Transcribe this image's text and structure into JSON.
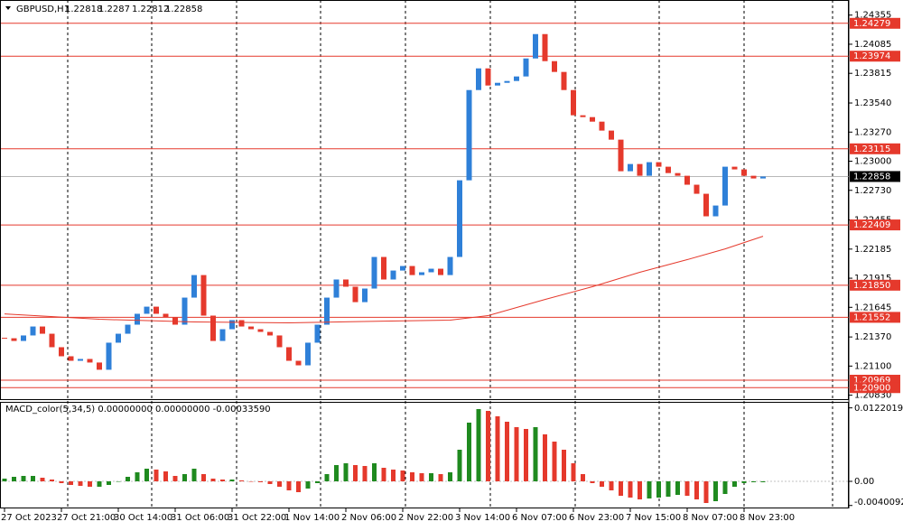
{
  "chart_data": [
    {
      "type": "candlestick",
      "title": "GBPUSD,H1",
      "ohlc": [
        1.22818,
        1.2287,
        1.22812,
        1.22858
      ],
      "categories": [
        "27 Oct 2023",
        null,
        null,
        null,
        null,
        null,
        "27 Oct 21:00",
        null,
        null,
        null,
        null,
        null,
        "30 Oct 14:00",
        null,
        null,
        null,
        null,
        null,
        "31 Oct 06:00",
        null,
        null,
        null,
        null,
        null,
        "31 Oct 22:00",
        null,
        null,
        null,
        null,
        null,
        "1 Nov 14:00",
        null,
        null,
        null,
        null,
        null,
        "2 Nov 06:00",
        null,
        null,
        null,
        null,
        null,
        "2 Nov 22:00",
        null,
        null,
        null,
        null,
        null,
        "3 Nov 14:00",
        null,
        null,
        null,
        null,
        null,
        "6 Nov 07:00",
        null,
        null,
        null,
        null,
        null,
        "6 Nov 23:00",
        null,
        null,
        null,
        null,
        null,
        "7 Nov 15:00",
        null,
        null,
        null,
        null,
        null,
        "8 Nov 07:00",
        null,
        null,
        null,
        null,
        null,
        "8 Nov 23:00",
        null,
        null
      ],
      "close": [
        1.21358,
        1.21333,
        1.21384,
        1.21467,
        1.214,
        1.21275,
        1.21191,
        1.21149,
        1.21166,
        1.21133,
        1.21066,
        1.21317,
        1.214,
        1.21484,
        1.21585,
        1.21651,
        1.21585,
        1.21551,
        1.21484,
        1.21735,
        1.21944,
        1.21568,
        1.21333,
        1.21442,
        1.21526,
        1.21467,
        1.21442,
        1.21417,
        1.21384,
        1.21275,
        1.21149,
        1.21107,
        1.21317,
        1.21484,
        1.21735,
        1.21903,
        1.21836,
        1.21693,
        1.21819,
        1.22112,
        1.21903,
        1.21986,
        1.22028,
        1.21944,
        1.2197,
        1.22003,
        1.21944,
        1.22112,
        1.22823,
        1.2366,
        1.23861,
        1.23702,
        1.23727,
        1.23744,
        1.23786,
        1.23953,
        1.24179,
        1.23928,
        1.23828,
        1.2366,
        1.23426,
        1.23409,
        1.23367,
        1.23284,
        1.232,
        1.22907,
        1.22974,
        1.22865,
        1.22991,
        1.22949,
        1.2289,
        1.22865,
        1.22782,
        1.22698,
        1.22489,
        1.22589,
        1.22949,
        1.22924,
        1.22865,
        1.2284,
        1.22858
      ],
      "colors": {
        "up": "#2f80d8",
        "down": "#e5392c"
      },
      "ma": {
        "x": [
          0,
          10,
          20,
          30,
          40,
          47,
          51,
          57,
          62,
          67,
          72,
          76,
          80
        ],
        "values": [
          1.21584,
          1.21534,
          1.21509,
          1.21501,
          1.21517,
          1.21526,
          1.21568,
          1.21718,
          1.21836,
          1.2197,
          1.22087,
          1.22187,
          1.22304
        ],
        "color": "#e5392c"
      },
      "levels": [
        1.24279,
        1.23974,
        1.23115,
        1.22409,
        1.2185,
        1.21552,
        1.20969,
        1.209
      ],
      "level_labels": [
        "1.24279",
        "1.23974",
        "1.23115",
        "1.22409",
        "1.21850",
        "1.21552",
        "1.20969",
        "1.20900"
      ],
      "level_color": "#e5392c",
      "ylim": [
        1.2081,
        1.2447
      ],
      "yticks": [
        1.24355,
        {
          "value": 1.24085,
          "label": "1.24085"
        },
        1.23815,
        {
          "value": 1.2354,
          "label": "1.23540"
        },
        {
          "value": 1.2327,
          "label": "1.23270"
        },
        {
          "value": 1.23,
          "label": "1.23000"
        },
        {
          "value": 1.2273,
          "label": "1.22730"
        },
        1.22455,
        1.22185,
        1.21915,
        1.21645,
        {
          "value": 1.2137,
          "label": "1.21370"
        },
        {
          "value": 1.211,
          "label": "1.21100"
        },
        {
          "value": 1.2083,
          "label": "1.20830"
        }
      ]
    },
    {
      "type": "histogram",
      "title": "MACD_color(5,34,5) 0.00000000 0.00000000 -0.00033590",
      "values": [
        0.00045,
        0.00075,
        0.0009,
        0.0009,
        0.0006,
        0.0003,
        -0.0003,
        -0.0006,
        -0.00075,
        -0.0009,
        -0.0009,
        -0.0006,
        0,
        0.00075,
        0.0015,
        0.0021,
        0.00195,
        0.00165,
        0.0009,
        0.0012,
        0.0021,
        0.0012,
        0.00045,
        0.0003,
        0.0003,
        0.00015,
        0,
        -0.00015,
        -0.00045,
        -0.0009,
        -0.0015,
        -0.0018,
        -0.0012,
        -0.0003,
        0.0012,
        0.0027,
        0.003,
        0.0027,
        0.00255,
        0.003,
        0.00225,
        0.00195,
        0.0018,
        0.0015,
        0.00135,
        0.00135,
        0.0012,
        0.0015,
        0.00525,
        0.00975,
        0.012,
        0.0117,
        0.0108,
        0.0099,
        0.009,
        0.0087,
        0.009,
        0.0078,
        0.0066,
        0.00525,
        0.003,
        0.0012,
        -0.0003,
        -0.0009,
        -0.0015,
        -0.0024,
        -0.0027,
        -0.003,
        -0.00285,
        -0.0027,
        -0.00255,
        -0.00225,
        -0.0024,
        -0.003,
        -0.0036,
        -0.0033,
        -0.0021,
        -0.0009,
        -0.0003,
        -0.00015,
        -0.00015
      ],
      "colors": {
        "up": "#1f8a1f",
        "down": "#e5392c"
      },
      "ylim": [
        -0.0045,
        0.01305
      ],
      "yticks": [
        0.0122019,
        {
          "value": 0,
          "label": "0.00"
        },
        -0.0040092
      ]
    }
  ]
}
